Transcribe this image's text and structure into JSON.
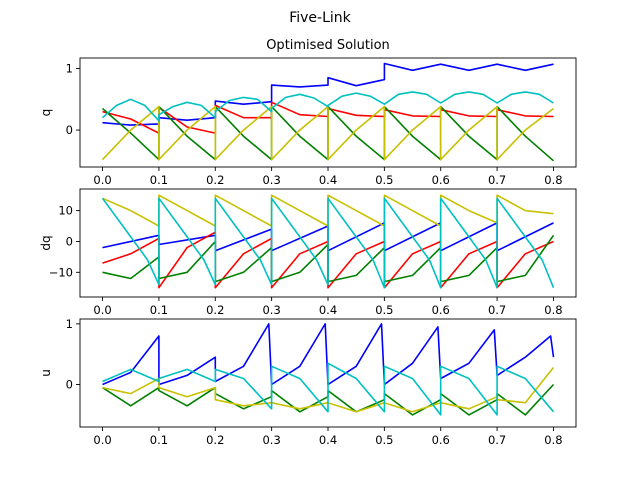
{
  "suptitle": "Five-Link",
  "chart_data": [
    {
      "type": "line",
      "title": "Optimised Solution",
      "ylabel": "q",
      "xlabel": "",
      "xlim": [
        -0.04,
        0.84
      ],
      "ylim": [
        -0.6,
        1.17
      ],
      "xticks": [
        "0.0",
        "0.1",
        "0.2",
        "0.3",
        "0.4",
        "0.5",
        "0.6",
        "0.7",
        "0.8"
      ],
      "yticks": [
        0,
        1
      ],
      "series": [
        {
          "color": "#0000ff",
          "x": [
            0.0,
            0.05,
            0.1,
            0.1,
            0.15,
            0.2,
            0.2,
            0.25,
            0.3,
            0.3,
            0.35,
            0.4,
            0.4,
            0.45,
            0.5,
            0.5,
            0.55,
            0.6,
            0.6,
            0.65,
            0.7,
            0.7,
            0.75,
            0.8
          ],
          "y": [
            0.12,
            0.08,
            0.1,
            0.2,
            0.16,
            0.2,
            0.47,
            0.42,
            0.46,
            0.73,
            0.7,
            0.73,
            0.85,
            0.72,
            0.82,
            1.08,
            0.97,
            1.07,
            1.07,
            0.97,
            1.07,
            1.07,
            0.97,
            1.07
          ]
        },
        {
          "color": "#ff0000",
          "x": [
            0.0,
            0.05,
            0.1,
            0.1,
            0.15,
            0.2,
            0.2,
            0.25,
            0.3,
            0.3,
            0.35,
            0.4,
            0.4,
            0.45,
            0.5,
            0.5,
            0.55,
            0.6,
            0.6,
            0.65,
            0.7,
            0.7,
            0.75,
            0.8
          ],
          "y": [
            0.3,
            0.18,
            -0.05,
            0.37,
            0.05,
            -0.05,
            0.4,
            0.2,
            0.2,
            0.45,
            0.25,
            0.22,
            0.35,
            0.24,
            0.22,
            0.33,
            0.23,
            0.22,
            0.33,
            0.23,
            0.22,
            0.33,
            0.23,
            0.22
          ]
        },
        {
          "color": "#008000",
          "x": [
            0.0,
            0.05,
            0.1,
            0.1,
            0.15,
            0.2,
            0.2,
            0.25,
            0.3,
            0.3,
            0.35,
            0.4,
            0.4,
            0.45,
            0.5,
            0.5,
            0.55,
            0.6,
            0.6,
            0.65,
            0.7,
            0.7,
            0.75,
            0.8
          ],
          "y": [
            0.35,
            -0.05,
            -0.48,
            0.38,
            -0.1,
            -0.48,
            0.38,
            -0.1,
            -0.48,
            0.38,
            -0.1,
            -0.48,
            0.38,
            -0.1,
            -0.48,
            0.38,
            -0.1,
            -0.48,
            0.38,
            -0.1,
            -0.48,
            0.38,
            -0.1,
            -0.5
          ]
        },
        {
          "color": "#c8c000",
          "x": [
            0.0,
            0.05,
            0.1,
            0.1,
            0.15,
            0.2,
            0.2,
            0.25,
            0.3,
            0.3,
            0.35,
            0.4,
            0.4,
            0.45,
            0.5,
            0.5,
            0.55,
            0.6,
            0.6,
            0.65,
            0.7,
            0.7,
            0.75,
            0.8
          ],
          "y": [
            -0.48,
            0.0,
            0.38,
            -0.48,
            0.0,
            0.38,
            -0.48,
            0.0,
            0.38,
            -0.48,
            0.0,
            0.38,
            -0.48,
            0.0,
            0.38,
            -0.48,
            0.0,
            0.38,
            -0.48,
            0.0,
            0.38,
            -0.48,
            0.0,
            0.35
          ]
        },
        {
          "color": "#00c0c0",
          "x": [
            0.0,
            0.025,
            0.05,
            0.075,
            0.1,
            0.1,
            0.125,
            0.15,
            0.175,
            0.2,
            0.2,
            0.225,
            0.25,
            0.275,
            0.3,
            0.3,
            0.325,
            0.35,
            0.375,
            0.4,
            0.4,
            0.425,
            0.45,
            0.475,
            0.5,
            0.5,
            0.525,
            0.55,
            0.575,
            0.6,
            0.6,
            0.625,
            0.65,
            0.675,
            0.7,
            0.7,
            0.725,
            0.75,
            0.775,
            0.8
          ],
          "y": [
            0.2,
            0.4,
            0.5,
            0.4,
            0.15,
            0.25,
            0.38,
            0.45,
            0.4,
            0.2,
            0.3,
            0.48,
            0.53,
            0.5,
            0.3,
            0.35,
            0.53,
            0.58,
            0.52,
            0.38,
            0.4,
            0.55,
            0.6,
            0.55,
            0.42,
            0.42,
            0.58,
            0.62,
            0.58,
            0.44,
            0.44,
            0.58,
            0.62,
            0.58,
            0.44,
            0.44,
            0.58,
            0.62,
            0.58,
            0.44
          ]
        }
      ]
    },
    {
      "type": "line",
      "title": "",
      "ylabel": "dq",
      "xlabel": "",
      "xlim": [
        -0.04,
        0.84
      ],
      "ylim": [
        -18,
        17
      ],
      "xticks": [
        "0.0",
        "0.1",
        "0.2",
        "0.3",
        "0.4",
        "0.5",
        "0.6",
        "0.7",
        "0.8"
      ],
      "yticks": [
        -10,
        0,
        10
      ],
      "series": [
        {
          "color": "#0000ff",
          "x": [
            0.0,
            0.1,
            0.1,
            0.2,
            0.2,
            0.3,
            0.3,
            0.4,
            0.4,
            0.5,
            0.5,
            0.6,
            0.6,
            0.7,
            0.7,
            0.8
          ],
          "y": [
            -2,
            2,
            -1,
            2,
            -3,
            4,
            -3,
            5,
            -3,
            6,
            -3,
            6,
            -3,
            6,
            -3,
            6
          ]
        },
        {
          "color": "#ff0000",
          "x": [
            0.0,
            0.05,
            0.1,
            0.1,
            0.15,
            0.2,
            0.2,
            0.25,
            0.3,
            0.3,
            0.35,
            0.4,
            0.4,
            0.45,
            0.5,
            0.5,
            0.55,
            0.6,
            0.6,
            0.65,
            0.7,
            0.7,
            0.75,
            0.8
          ],
          "y": [
            -7,
            -4,
            1,
            -15,
            -2,
            3,
            -15,
            -4,
            1,
            -15,
            -4,
            0,
            -15,
            -4,
            0,
            -15,
            -4,
            0,
            -15,
            -4,
            0,
            -15,
            -4,
            0
          ]
        },
        {
          "color": "#008000",
          "x": [
            0.0,
            0.05,
            0.1,
            0.1,
            0.15,
            0.2,
            0.2,
            0.25,
            0.3,
            0.3,
            0.35,
            0.4,
            0.4,
            0.45,
            0.5,
            0.5,
            0.55,
            0.6,
            0.6,
            0.65,
            0.7,
            0.7,
            0.75,
            0.8
          ],
          "y": [
            -10,
            -12,
            -5,
            -12,
            -10,
            0,
            -13,
            -10,
            -2,
            -13,
            -10,
            -1,
            -13,
            -11,
            -2,
            -13,
            -11,
            -2,
            -13,
            -11,
            -2,
            -13,
            -11,
            2
          ]
        },
        {
          "color": "#c8c000",
          "x": [
            0.0,
            0.05,
            0.1,
            0.1,
            0.15,
            0.2,
            0.2,
            0.25,
            0.3,
            0.3,
            0.35,
            0.4,
            0.4,
            0.45,
            0.5,
            0.5,
            0.55,
            0.6,
            0.6,
            0.65,
            0.7,
            0.7,
            0.75,
            0.8
          ],
          "y": [
            14,
            10,
            5,
            15,
            10,
            5,
            15,
            10,
            5,
            15,
            10,
            5,
            15,
            10,
            5,
            15,
            10,
            5,
            15,
            10,
            6,
            15,
            10,
            9
          ]
        },
        {
          "color": "#00c0c0",
          "x": [
            0.0,
            0.04,
            0.08,
            0.1,
            0.1,
            0.14,
            0.18,
            0.2,
            0.2,
            0.24,
            0.28,
            0.3,
            0.3,
            0.34,
            0.38,
            0.4,
            0.4,
            0.44,
            0.48,
            0.5,
            0.5,
            0.54,
            0.58,
            0.6,
            0.6,
            0.64,
            0.68,
            0.7,
            0.7,
            0.74,
            0.78,
            0.8
          ],
          "y": [
            14,
            4,
            -6,
            -14,
            14,
            4,
            -6,
            -14,
            14,
            4,
            -6,
            -14,
            14,
            4,
            -6,
            -14,
            14,
            4,
            -6,
            -15,
            14,
            4,
            -6,
            -15,
            14,
            4,
            -6,
            -15,
            14,
            4,
            -6,
            -15
          ]
        }
      ]
    },
    {
      "type": "line",
      "title": "",
      "ylabel": "u",
      "xlabel": "",
      "xlim": [
        -0.04,
        0.84
      ],
      "ylim": [
        -0.7,
        1.08
      ],
      "xticks": [
        "0.0",
        "0.1",
        "0.2",
        "0.3",
        "0.4",
        "0.5",
        "0.6",
        "0.7",
        "0.8"
      ],
      "yticks": [
        0,
        1
      ],
      "series": [
        {
          "color": "#0000ff",
          "x": [
            0.0,
            0.05,
            0.1,
            0.1,
            0.15,
            0.2,
            0.2,
            0.25,
            0.295,
            0.3,
            0.35,
            0.395,
            0.4,
            0.45,
            0.495,
            0.5,
            0.55,
            0.595,
            0.6,
            0.65,
            0.695,
            0.7,
            0.75,
            0.795,
            0.8
          ],
          "y": [
            0.0,
            0.2,
            0.8,
            0.0,
            0.15,
            0.45,
            0.05,
            0.3,
            1.0,
            0.0,
            0.3,
            1.0,
            0.0,
            0.3,
            1.0,
            0.0,
            0.35,
            0.95,
            0.1,
            0.35,
            0.9,
            0.15,
            0.45,
            0.8,
            0.45
          ]
        },
        {
          "color": "#008000",
          "x": [
            0.0,
            0.05,
            0.1,
            0.1,
            0.15,
            0.2,
            0.2,
            0.25,
            0.3,
            0.3,
            0.35,
            0.4,
            0.4,
            0.45,
            0.5,
            0.5,
            0.55,
            0.6,
            0.6,
            0.65,
            0.7,
            0.7,
            0.75,
            0.8
          ],
          "y": [
            -0.05,
            -0.35,
            -0.05,
            -0.1,
            -0.35,
            -0.05,
            -0.15,
            -0.4,
            -0.2,
            -0.1,
            -0.45,
            -0.2,
            -0.1,
            -0.45,
            -0.25,
            -0.15,
            -0.5,
            -0.25,
            -0.15,
            -0.5,
            -0.25,
            -0.15,
            -0.5,
            0.0
          ]
        },
        {
          "color": "#c8c000",
          "x": [
            0.0,
            0.05,
            0.1,
            0.1,
            0.15,
            0.2,
            0.2,
            0.25,
            0.3,
            0.3,
            0.35,
            0.4,
            0.4,
            0.45,
            0.5,
            0.5,
            0.55,
            0.6,
            0.6,
            0.65,
            0.7,
            0.7,
            0.75,
            0.8
          ],
          "y": [
            -0.05,
            -0.15,
            0.1,
            -0.05,
            -0.2,
            -0.05,
            -0.25,
            -0.35,
            -0.3,
            -0.3,
            -0.4,
            -0.3,
            -0.3,
            -0.45,
            -0.3,
            -0.3,
            -0.45,
            -0.3,
            -0.3,
            -0.4,
            -0.2,
            -0.25,
            -0.3,
            0.28
          ]
        },
        {
          "color": "#00c0c0",
          "x": [
            0.0,
            0.05,
            0.1,
            0.1,
            0.15,
            0.2,
            0.2,
            0.25,
            0.3,
            0.3,
            0.35,
            0.4,
            0.4,
            0.45,
            0.5,
            0.5,
            0.55,
            0.6,
            0.6,
            0.65,
            0.7,
            0.7,
            0.75,
            0.8
          ],
          "y": [
            0.05,
            0.25,
            0.05,
            0.1,
            0.25,
            0.05,
            0.25,
            0.1,
            -0.4,
            0.3,
            0.1,
            -0.45,
            0.35,
            0.1,
            -0.45,
            0.3,
            0.1,
            -0.5,
            0.3,
            0.1,
            -0.5,
            0.3,
            0.1,
            -0.45
          ]
        }
      ]
    }
  ]
}
